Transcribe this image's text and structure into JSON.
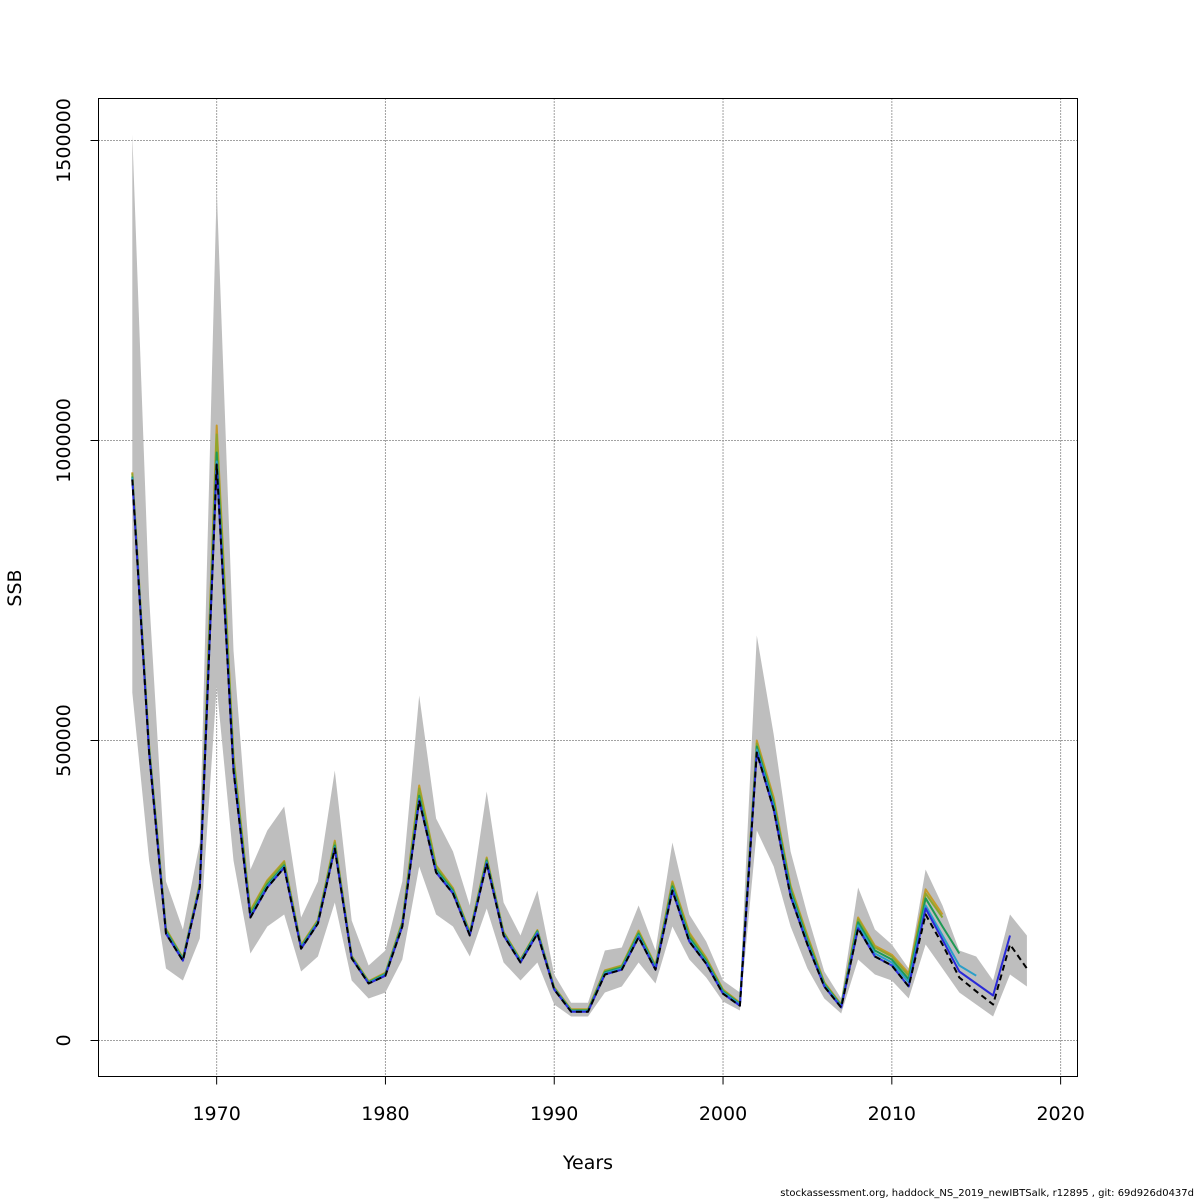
{
  "chart_data": {
    "type": "line",
    "xlabel": "Years",
    "ylabel": "SSB",
    "xlim": [
      1963,
      2021
    ],
    "ylim": [
      -60000,
      1570000
    ],
    "x_ticks": [
      1970,
      1980,
      1990,
      2000,
      2010,
      2020
    ],
    "y_ticks": [
      0,
      500000,
      1000000,
      1500000
    ],
    "x_tick_labels": [
      "1970",
      "1980",
      "1990",
      "2000",
      "2010",
      "2020"
    ],
    "y_tick_labels": [
      "0",
      "500000",
      "1000000",
      "1500000"
    ],
    "grid": true,
    "confidence_band": {
      "color": "#bebebe",
      "x": [
        1965,
        1966,
        1967,
        1968,
        1969,
        1970,
        1971,
        1972,
        1973,
        1974,
        1975,
        1976,
        1977,
        1978,
        1979,
        1980,
        1981,
        1982,
        1983,
        1984,
        1985,
        1986,
        1987,
        1988,
        1989,
        1990,
        1991,
        1992,
        1993,
        1994,
        1995,
        1996,
        1997,
        1998,
        1999,
        2000,
        2001,
        2002,
        2003,
        2004,
        2005,
        2006,
        2007,
        2008,
        2009,
        2010,
        2011,
        2012,
        2013,
        2014,
        2015,
        2016,
        2017,
        2018
      ],
      "lower": [
        580000,
        300000,
        120000,
        100000,
        170000,
        590000,
        300000,
        145000,
        190000,
        210000,
        115000,
        140000,
        230000,
        100000,
        70000,
        80000,
        135000,
        290000,
        210000,
        190000,
        140000,
        220000,
        130000,
        100000,
        130000,
        60000,
        40000,
        40000,
        80000,
        90000,
        130000,
        95000,
        190000,
        135000,
        105000,
        65000,
        50000,
        350000,
        290000,
        190000,
        120000,
        70000,
        45000,
        135000,
        110000,
        100000,
        70000,
        160000,
        120000,
        80000,
        60000,
        40000,
        110000,
        90000
      ],
      "upper": [
        1510000,
        740000,
        265000,
        185000,
        330000,
        1420000,
        650000,
        285000,
        350000,
        390000,
        205000,
        265000,
        450000,
        200000,
        125000,
        150000,
        265000,
        575000,
        370000,
        315000,
        225000,
        415000,
        230000,
        175000,
        250000,
        110000,
        63000,
        63000,
        150000,
        155000,
        225000,
        150000,
        330000,
        210000,
        165000,
        100000,
        80000,
        675000,
        510000,
        315000,
        210000,
        115000,
        70000,
        255000,
        185000,
        160000,
        120000,
        285000,
        225000,
        150000,
        140000,
        100000,
        210000,
        175000
      ]
    },
    "series": [
      {
        "color": "#000000",
        "dash": true,
        "x": [
          1965,
          1966,
          1967,
          1968,
          1969,
          1970,
          1971,
          1972,
          1973,
          1974,
          1975,
          1976,
          1977,
          1978,
          1979,
          1980,
          1981,
          1982,
          1983,
          1984,
          1985,
          1986,
          1987,
          1988,
          1989,
          1990,
          1991,
          1992,
          1993,
          1994,
          1995,
          1996,
          1997,
          1998,
          1999,
          2000,
          2001,
          2002,
          2003,
          2004,
          2005,
          2006,
          2007,
          2008,
          2009,
          2010,
          2011,
          2012,
          2013,
          2014,
          2015,
          2016,
          2017,
          2018
        ],
        "values": [
          935000,
          480000,
          178000,
          133000,
          255000,
          960000,
          450000,
          205000,
          255000,
          288000,
          153000,
          195000,
          320000,
          137000,
          95000,
          108000,
          190000,
          400000,
          280000,
          245000,
          175000,
          295000,
          175000,
          130000,
          178000,
          85000,
          48000,
          48000,
          110000,
          118000,
          172000,
          118000,
          250000,
          165000,
          128000,
          78000,
          58000,
          480000,
          385000,
          240000,
          160000,
          90000,
          55000,
          187000,
          140000,
          125000,
          90000,
          210000,
          160000,
          105000,
          82000,
          60000,
          160000,
          120000
        ]
      },
      {
        "color": "#2a2ad8",
        "dash": false,
        "x": [
          1965,
          1966,
          1967,
          1968,
          1969,
          1970,
          1971,
          1972,
          1973,
          1974,
          1975,
          1976,
          1977,
          1978,
          1979,
          1980,
          1981,
          1982,
          1983,
          1984,
          1985,
          1986,
          1987,
          1988,
          1989,
          1990,
          1991,
          1992,
          1993,
          1994,
          1995,
          1996,
          1997,
          1998,
          1999,
          2000,
          2001,
          2002,
          2003,
          2004,
          2005,
          2006,
          2007,
          2008,
          2009,
          2010,
          2011,
          2012,
          2013,
          2014,
          2015,
          2016,
          2017
        ],
        "values": [
          935000,
          480000,
          178000,
          133000,
          255000,
          960000,
          450000,
          205000,
          255000,
          288000,
          153000,
          195000,
          320000,
          137000,
          95000,
          108000,
          190000,
          400000,
          280000,
          245000,
          175000,
          295000,
          175000,
          130000,
          178000,
          85000,
          48000,
          48000,
          110000,
          118000,
          172000,
          118000,
          250000,
          165000,
          128000,
          78000,
          58000,
          480000,
          385000,
          240000,
          160000,
          90000,
          55000,
          187000,
          140000,
          125000,
          90000,
          220000,
          168000,
          115000,
          95000,
          75000,
          175000
        ]
      },
      {
        "color": "#2a9ec9",
        "dash": false,
        "x": [
          1965,
          1966,
          1967,
          1968,
          1969,
          1970,
          1971,
          1972,
          1973,
          1974,
          1975,
          1976,
          1977,
          1978,
          1979,
          1980,
          1981,
          1982,
          1983,
          1984,
          1985,
          1986,
          1987,
          1988,
          1989,
          1990,
          1991,
          1992,
          1993,
          1994,
          1995,
          1996,
          1997,
          1998,
          1999,
          2000,
          2001,
          2002,
          2003,
          2004,
          2005,
          2006,
          2007,
          2008,
          2009,
          2010,
          2011,
          2012,
          2013,
          2014,
          2015
        ],
        "values": [
          938000,
          483000,
          180000,
          135000,
          257000,
          965000,
          455000,
          207000,
          257000,
          290000,
          155000,
          197000,
          322000,
          138000,
          96000,
          110000,
          192000,
          403000,
          282000,
          247000,
          177000,
          297000,
          177000,
          132000,
          180000,
          86000,
          49000,
          49000,
          112000,
          120000,
          175000,
          120000,
          253000,
          168000,
          130000,
          80000,
          60000,
          485000,
          390000,
          245000,
          163000,
          92000,
          57000,
          192000,
          145000,
          130000,
          97000,
          225000,
          175000,
          125000,
          108000
        ]
      },
      {
        "color": "#1e9a55",
        "dash": false,
        "x": [
          1965,
          1966,
          1967,
          1968,
          1969,
          1970,
          1971,
          1972,
          1973,
          1974,
          1975,
          1976,
          1977,
          1978,
          1979,
          1980,
          1981,
          1982,
          1983,
          1984,
          1985,
          1986,
          1987,
          1988,
          1989,
          1990,
          1991,
          1992,
          1993,
          1994,
          1995,
          1996,
          1997,
          1998,
          1999,
          2000,
          2001,
          2002,
          2003,
          2004,
          2005,
          2006,
          2007,
          2008,
          2009,
          2010,
          2011,
          2012,
          2013,
          2014
        ],
        "values": [
          940000,
          486000,
          182000,
          136000,
          258000,
          980000,
          460000,
          210000,
          260000,
          292000,
          156000,
          198000,
          325000,
          139000,
          97000,
          111000,
          194000,
          408000,
          285000,
          250000,
          178000,
          300000,
          178000,
          133000,
          182000,
          87000,
          50000,
          50000,
          114000,
          122000,
          178000,
          122000,
          257000,
          172000,
          133000,
          82000,
          61000,
          490000,
          395000,
          250000,
          167000,
          94000,
          58000,
          197000,
          150000,
          135000,
          102000,
          237000,
          190000,
          145000
        ]
      },
      {
        "color": "#8fa62c",
        "dash": false,
        "x": [
          1965,
          1966,
          1967,
          1968,
          1969,
          1970,
          1971,
          1972,
          1973,
          1974,
          1975,
          1976,
          1977,
          1978,
          1979,
          1980,
          1981,
          1982,
          1983,
          1984,
          1985,
          1986,
          1987,
          1988,
          1989,
          1990,
          1991,
          1992,
          1993,
          1994,
          1995,
          1996,
          1997,
          1998,
          1999,
          2000,
          2001,
          2002,
          2003,
          2004,
          2005,
          2006,
          2007,
          2008,
          2009,
          2010,
          2011,
          2012,
          2013
        ],
        "values": [
          945000,
          490000,
          185000,
          137000,
          260000,
          1010000,
          470000,
          215000,
          265000,
          297000,
          158000,
          200000,
          330000,
          140000,
          98000,
          112000,
          197000,
          420000,
          290000,
          252000,
          180000,
          303000,
          180000,
          134000,
          183000,
          88000,
          51000,
          51000,
          116000,
          124000,
          181000,
          124000,
          262000,
          177000,
          136000,
          84000,
          62000,
          495000,
          400000,
          255000,
          172000,
          96000,
          59000,
          202000,
          155000,
          140000,
          108000,
          245000,
          205000
        ]
      },
      {
        "color": "#c69a2a",
        "dash": false,
        "x": [
          1965,
          1966,
          1967,
          1968,
          1969,
          1970,
          1971,
          1972,
          1973,
          1974,
          1975,
          1976,
          1977,
          1978,
          1979,
          1980,
          1981,
          1982,
          1983,
          1984,
          1985,
          1986,
          1987,
          1988,
          1989,
          1990,
          1991,
          1992,
          1993,
          1994,
          1995,
          1996,
          1997,
          1998,
          1999,
          2000,
          2001,
          2002,
          2003,
          2004,
          2005,
          2006,
          2007,
          2008,
          2009,
          2010,
          2011,
          2012,
          2013
        ],
        "values": [
          947000,
          492000,
          186000,
          138000,
          262000,
          1025000,
          475000,
          217000,
          267000,
          299000,
          159000,
          201000,
          333000,
          141000,
          99000,
          113000,
          198000,
          425000,
          292000,
          254000,
          181000,
          305000,
          181000,
          135000,
          184000,
          89000,
          52000,
          52000,
          117000,
          125000,
          183000,
          125000,
          265000,
          180000,
          138000,
          85000,
          63000,
          500000,
          405000,
          258000,
          175000,
          97000,
          60000,
          205000,
          158000,
          143000,
          112000,
          252000,
          210000
        ]
      }
    ]
  },
  "footer": "stockassessment.org, haddock_NS_2019_newIBTSalk, r12895 , git: 69d926d0437d"
}
